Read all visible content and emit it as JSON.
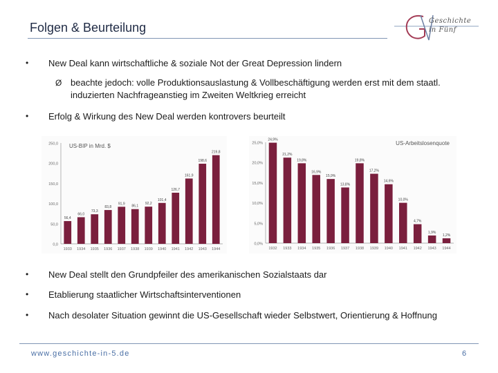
{
  "slide": {
    "title": "Folgen & Beurteilung",
    "logo": {
      "line1": "Geschichte",
      "line2": "in Fünf"
    },
    "bullets": [
      "New Deal kann wirtschaftliche & soziale Not der Great Depression lindern",
      "Erfolg & Wirkung des New Deal werden kontrovers beurteilt",
      "New Deal stellt den Grundpfeiler des amerikanischen Sozialstaats dar",
      "Etablierung staatlicher Wirtschaftsinterventionen",
      "Nach desolater Situation gewinnt die US-Gesellschaft wieder Selbstwert, Orientierung & Hoffnung"
    ],
    "sub_bullet": "beachte jedoch: volle Produktionsauslastung & Vollbeschäftigung werden erst mit dem staatl. induzierten Nachfrageanstieg im Zweiten Weltkrieg erreicht",
    "bullet_symbol": "•",
    "arrow_symbol": "Ø",
    "footer_url": "www.geschichte-in-5.de",
    "page_number": "6"
  },
  "chart_data": [
    {
      "type": "bar",
      "title": "US-BIP in Mrd. $",
      "categories": [
        "1933",
        "1934",
        "1935",
        "1936",
        "1937",
        "1938",
        "1939",
        "1940",
        "1941",
        "1942",
        "1943",
        "1944"
      ],
      "values": [
        56.4,
        66.0,
        73.3,
        83.8,
        91.9,
        86.1,
        92.2,
        101.4,
        126.7,
        161.9,
        198.6,
        219.8
      ],
      "labels": [
        "56,4",
        "66,0",
        "73,3",
        "83,8",
        "91,9",
        "86,1",
        "92,2",
        "101,4",
        "126,7",
        "161,9",
        "198,6",
        "219,8"
      ],
      "yticks": [
        0,
        50,
        100,
        150,
        200,
        250
      ],
      "ytick_labels": [
        "0,0",
        "50,0",
        "100,0",
        "150,0",
        "200,0",
        "250,0"
      ],
      "ylim": [
        0,
        250
      ],
      "bar_color": "#7a1f3d",
      "grid": false
    },
    {
      "type": "bar",
      "title": "US-Arbeitslosenquote",
      "categories": [
        "1932",
        "1933",
        "1934",
        "1935",
        "1936",
        "1937",
        "1938",
        "1939",
        "1940",
        "1941",
        "1942",
        "1943",
        "1944"
      ],
      "values": [
        24.9,
        21.2,
        19.8,
        16.9,
        15.9,
        13.8,
        19.8,
        17.2,
        14.6,
        10.0,
        4.7,
        1.9,
        1.2
      ],
      "labels": [
        "24,9%",
        "21,2%",
        "19,8%",
        "16,9%",
        "15,9%",
        "13,8%",
        "19,8%",
        "17,2%",
        "14,6%",
        "10,0%",
        "4,7%",
        "1,9%",
        "1,2%"
      ],
      "yticks": [
        0,
        5,
        10,
        15,
        20,
        25
      ],
      "ytick_labels": [
        "0,0%",
        "5,0%",
        "10,0%",
        "15,0%",
        "20,0%",
        "25,0%"
      ],
      "ylim": [
        0,
        25
      ],
      "bar_color": "#7a1f3d",
      "grid": false
    }
  ]
}
